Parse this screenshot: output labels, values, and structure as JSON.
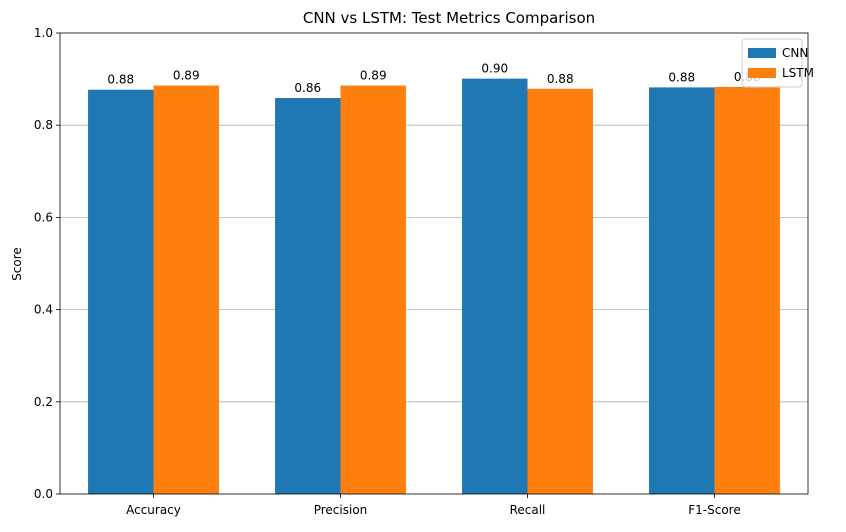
{
  "chart_data": {
    "type": "bar",
    "title": "CNN vs LSTM: Test Metrics Comparison",
    "xlabel": "",
    "ylabel": "Score",
    "categories": [
      "Accuracy",
      "Precision",
      "Recall",
      "F1-Score"
    ],
    "series": [
      {
        "name": "CNN",
        "color": "#1f77b4",
        "values": [
          0.877,
          0.859,
          0.901,
          0.882
        ],
        "labels": [
          "0.88",
          "0.86",
          "0.90",
          "0.88"
        ]
      },
      {
        "name": "LSTM",
        "color": "#ff7f0e",
        "values": [
          0.886,
          0.886,
          0.879,
          0.883
        ],
        "labels": [
          "0.89",
          "0.89",
          "0.88",
          "0.88"
        ]
      }
    ],
    "ylim": [
      0,
      1.0
    ],
    "yticks": [
      0.0,
      0.2,
      0.4,
      0.6,
      0.8,
      1.0
    ],
    "ytick_labels": [
      "0.0",
      "0.2",
      "0.4",
      "0.6",
      "0.8",
      "1.0"
    ],
    "grid": "y",
    "legend_position": "top-right"
  }
}
